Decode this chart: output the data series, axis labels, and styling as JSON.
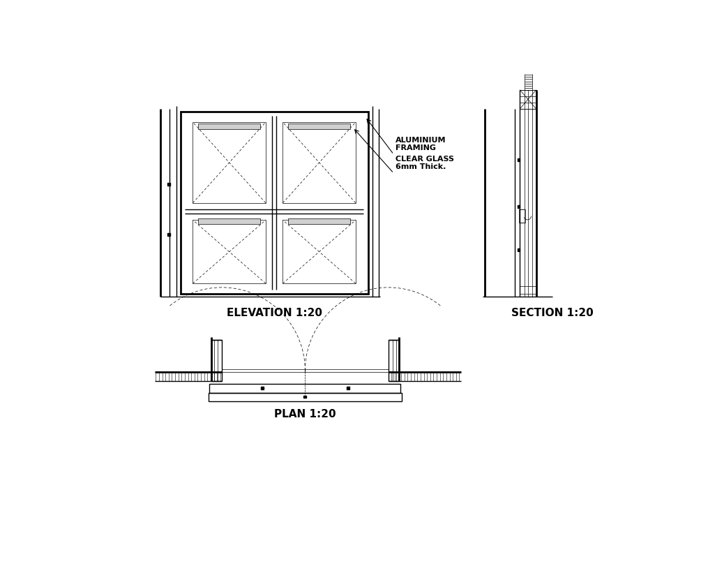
{
  "bg_color": "#ffffff",
  "line_color": "#000000",
  "title_elevation": "ELEVATION 1:20",
  "title_section": "SECTION 1:20",
  "title_plan": "PLAN 1:20",
  "annotation_1": "ALUMINIUM\nFRAMING",
  "annotation_2": "CLEAR GLASS\n6mm Thick.",
  "lw_main": 1.0,
  "lw_thin": 0.5,
  "lw_thick": 2.0
}
